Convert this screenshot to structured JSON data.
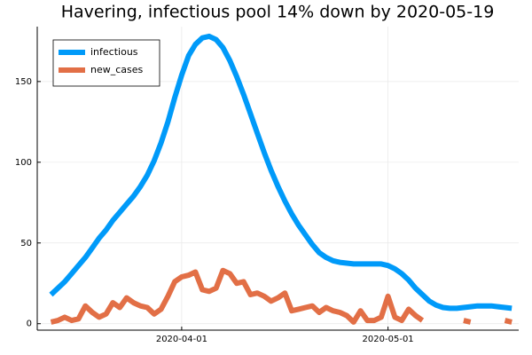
{
  "chart_data": {
    "type": "line",
    "title": "Havering, infectious pool 14% down by 2020-05-19",
    "x": [
      "2020-03-13",
      "2020-03-14",
      "2020-03-15",
      "2020-03-16",
      "2020-03-17",
      "2020-03-18",
      "2020-03-19",
      "2020-03-20",
      "2020-03-21",
      "2020-03-22",
      "2020-03-23",
      "2020-03-24",
      "2020-03-25",
      "2020-03-26",
      "2020-03-27",
      "2020-03-28",
      "2020-03-29",
      "2020-03-30",
      "2020-03-31",
      "2020-04-01",
      "2020-04-02",
      "2020-04-03",
      "2020-04-04",
      "2020-04-05",
      "2020-04-06",
      "2020-04-07",
      "2020-04-08",
      "2020-04-09",
      "2020-04-10",
      "2020-04-11",
      "2020-04-12",
      "2020-04-13",
      "2020-04-14",
      "2020-04-15",
      "2020-04-16",
      "2020-04-17",
      "2020-04-18",
      "2020-04-19",
      "2020-04-20",
      "2020-04-21",
      "2020-04-22",
      "2020-04-23",
      "2020-04-24",
      "2020-04-25",
      "2020-04-26",
      "2020-04-27",
      "2020-04-28",
      "2020-04-29",
      "2020-04-30",
      "2020-05-01",
      "2020-05-02",
      "2020-05-03",
      "2020-05-04",
      "2020-05-05",
      "2020-05-06",
      "2020-05-07",
      "2020-05-08",
      "2020-05-09",
      "2020-05-10",
      "2020-05-11",
      "2020-05-12",
      "2020-05-13",
      "2020-05-14",
      "2020-05-15",
      "2020-05-16",
      "2020-05-17",
      "2020-05-18",
      "2020-05-19"
    ],
    "series": [
      {
        "name": "infectious",
        "color": "#009af9",
        "values": [
          18,
          22,
          26,
          31,
          36,
          41,
          47,
          53,
          58,
          64,
          69,
          74,
          79,
          85,
          92,
          101,
          112,
          125,
          140,
          154,
          166,
          173,
          177,
          178,
          176,
          171,
          163,
          153,
          142,
          130,
          118,
          106,
          95,
          85,
          76,
          68,
          61,
          55,
          49,
          44,
          41,
          39,
          38,
          37.5,
          37,
          37,
          37,
          37,
          37,
          36,
          34,
          31,
          27,
          22,
          18,
          14,
          11.5,
          10,
          9.5,
          9.5,
          10,
          10.5,
          11,
          11,
          11,
          10.5,
          10,
          9.5
        ]
      },
      {
        "name": "new_cases",
        "color": "#e26f46",
        "values": [
          1,
          2,
          4,
          2,
          3,
          11,
          7,
          4,
          6,
          13,
          10,
          16,
          13,
          11,
          10,
          6,
          9,
          17,
          26,
          29,
          30,
          32,
          21,
          20,
          22,
          33,
          31,
          25,
          26,
          18,
          19,
          17,
          14,
          16,
          19,
          8,
          9,
          10,
          11,
          7,
          10,
          8,
          7,
          5,
          1,
          8,
          2,
          2,
          4,
          17,
          4,
          2,
          9,
          5,
          2,
          null,
          null,
          null,
          null,
          null,
          2,
          1,
          null,
          5,
          null,
          null,
          2,
          1
        ]
      }
    ],
    "xlim": [
      "2020-03-11",
      "2020-05-20"
    ],
    "xticks": [
      "2020-04-01",
      "2020-05-01"
    ],
    "ylim": [
      -4,
      184
    ],
    "yticks": [
      0,
      50,
      100,
      150
    ],
    "grid": true,
    "legend": "top-left"
  }
}
